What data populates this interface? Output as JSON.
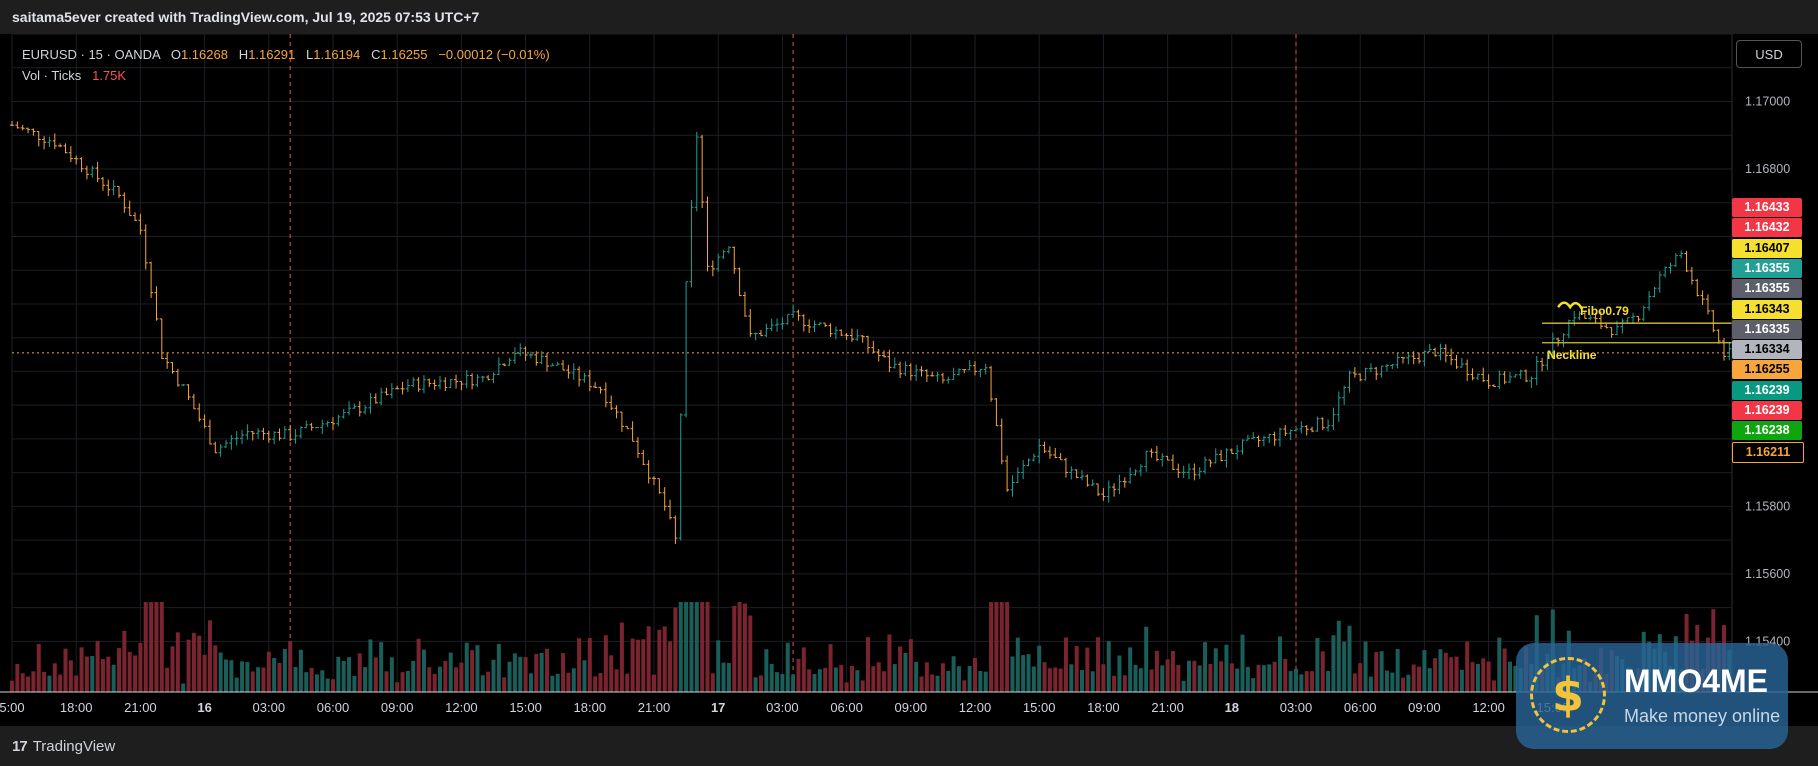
{
  "header": {
    "credit": "saitama5ever created with TradingView.com, Jul 19, 2025 07:53 UTC+7"
  },
  "legend": {
    "symbol": "EURUSD · 15 · OANDA",
    "o_label": "O",
    "o_value": "1.16268",
    "h_label": "H",
    "h_value": "1.16291",
    "l_label": "L",
    "l_value": "1.16194",
    "c_label": "C",
    "c_value": "1.16255",
    "change": "−0.00012 (−0.01%)",
    "volume_label": "Vol · Ticks",
    "volume_value": "1.75K"
  },
  "currency_button": "USD",
  "footer": {
    "logo_mark": "17",
    "logo_text": "TradingView"
  },
  "watermark": {
    "brand": "MMO4ME",
    "tagline": "Make money online",
    "coin_symbol": "$"
  },
  "price_tags": [
    {
      "value": "1.16433",
      "bg": "#f23645",
      "fg": "#ffffff"
    },
    {
      "value": "1.16432",
      "bg": "#f23645",
      "fg": "#ffffff"
    },
    {
      "value": "1.16407",
      "bg": "#f5e030",
      "fg": "#000000"
    },
    {
      "value": "1.16355",
      "bg": "#22a095",
      "fg": "#ffffff"
    },
    {
      "value": "1.16355",
      "bg": "#5d606b",
      "fg": "#ffffff"
    },
    {
      "value": "1.16343",
      "bg": "#f5e030",
      "fg": "#000000"
    },
    {
      "value": "1.16335",
      "bg": "#5d606b",
      "fg": "#ffffff"
    },
    {
      "value": "1.16334",
      "bg": "#b2b5be",
      "fg": "#000000"
    },
    {
      "value": "1.16255",
      "bg": "#f7a63c",
      "fg": "#000000"
    },
    {
      "value": "1.16239",
      "bg": "#089981",
      "fg": "#ffffff"
    },
    {
      "value": "1.16239",
      "bg": "#f23645",
      "fg": "#ffffff"
    },
    {
      "value": "1.16238",
      "bg": "#0fa50f",
      "fg": "#ffffff"
    },
    {
      "value": "1.16211",
      "bg": "#000000",
      "fg": "#f7a63c"
    }
  ],
  "colors": {
    "background": "#000000",
    "grid": "#1c1f26",
    "up": "#22a095",
    "down": "#f7a63c",
    "vol_up": "#1a5e59",
    "vol_down": "#7a2430",
    "session_line": "#e0584a",
    "last_price": "#f7a63c",
    "annotation_line": "#d8c13a",
    "annotation_text": "#f5e030"
  },
  "chart_data": {
    "type": "candlestick",
    "symbol": "EURUSD",
    "interval": "15",
    "y_axis": {
      "min": 1.1525,
      "max": 1.172,
      "ticks": [
        "1.17000",
        "1.16800",
        "1.15800",
        "1.15600",
        "1.15400"
      ]
    },
    "x_axis": {
      "ticks": [
        "5:00",
        "18:00",
        "21:00",
        "16",
        "03:00",
        "06:00",
        "09:00",
        "12:00",
        "15:00",
        "18:00",
        "21:00",
        "17",
        "03:00",
        "06:00",
        "09:00",
        "12:00",
        "15:00",
        "18:00",
        "21:00",
        "18",
        "03:00",
        "06:00",
        "09:00",
        "12:00",
        "15:00"
      ],
      "tick_positions_bar": [
        0,
        12,
        24,
        36,
        48,
        60,
        72,
        84,
        96,
        108,
        120,
        132,
        144,
        156,
        168,
        180,
        192,
        204,
        216,
        228,
        240,
        252,
        264,
        276,
        288
      ],
      "bold_ticks": [
        "16",
        "17",
        "18"
      ],
      "bar_count": 323
    },
    "session_breaks_bar": [
      52,
      146,
      240
    ],
    "close_anchors": [
      [
        0,
        1.1693
      ],
      [
        8,
        1.1688
      ],
      [
        14,
        1.168
      ],
      [
        20,
        1.1672
      ],
      [
        24,
        1.1662
      ],
      [
        26,
        1.1645
      ],
      [
        28,
        1.1625
      ],
      [
        32,
        1.1615
      ],
      [
        38,
        1.1597
      ],
      [
        44,
        1.1602
      ],
      [
        52,
        1.1601
      ],
      [
        62,
        1.1607
      ],
      [
        74,
        1.1616
      ],
      [
        88,
        1.1618
      ],
      [
        94,
        1.1626
      ],
      [
        100,
        1.1623
      ],
      [
        110,
        1.1615
      ],
      [
        116,
        1.16
      ],
      [
        122,
        1.158
      ],
      [
        124,
        1.157
      ],
      [
        126,
        1.1645
      ],
      [
        128,
        1.169
      ],
      [
        130,
        1.165
      ],
      [
        134,
        1.1658
      ],
      [
        138,
        1.163
      ],
      [
        146,
        1.1636
      ],
      [
        158,
        1.163
      ],
      [
        164,
        1.1622
      ],
      [
        174,
        1.1617
      ],
      [
        182,
        1.1622
      ],
      [
        186,
        1.1585
      ],
      [
        192,
        1.1598
      ],
      [
        198,
        1.159
      ],
      [
        204,
        1.1583
      ],
      [
        212,
        1.1595
      ],
      [
        220,
        1.159
      ],
      [
        230,
        1.1598
      ],
      [
        240,
        1.1603
      ],
      [
        246,
        1.1605
      ],
      [
        250,
        1.1618
      ],
      [
        260,
        1.1623
      ],
      [
        266,
        1.1626
      ],
      [
        276,
        1.1617
      ],
      [
        284,
        1.1619
      ],
      [
        292,
        1.1637
      ],
      [
        300,
        1.1632
      ],
      [
        304,
        1.1637
      ],
      [
        308,
        1.1648
      ],
      [
        312,
        1.1655
      ],
      [
        316,
        1.164
      ],
      [
        320,
        1.1625
      ],
      [
        322,
        1.1625
      ]
    ],
    "last_price": 1.16255,
    "annotations": [
      {
        "text": "Fibo0.79",
        "price": 1.16343,
        "from_bar": 286,
        "to_bar": 323
      },
      {
        "text": "Neckline",
        "price": 1.16285,
        "from_bar": 286,
        "to_bar": 323
      }
    ],
    "volume": {
      "label": "Vol · Ticks",
      "last": "1.75K"
    }
  }
}
